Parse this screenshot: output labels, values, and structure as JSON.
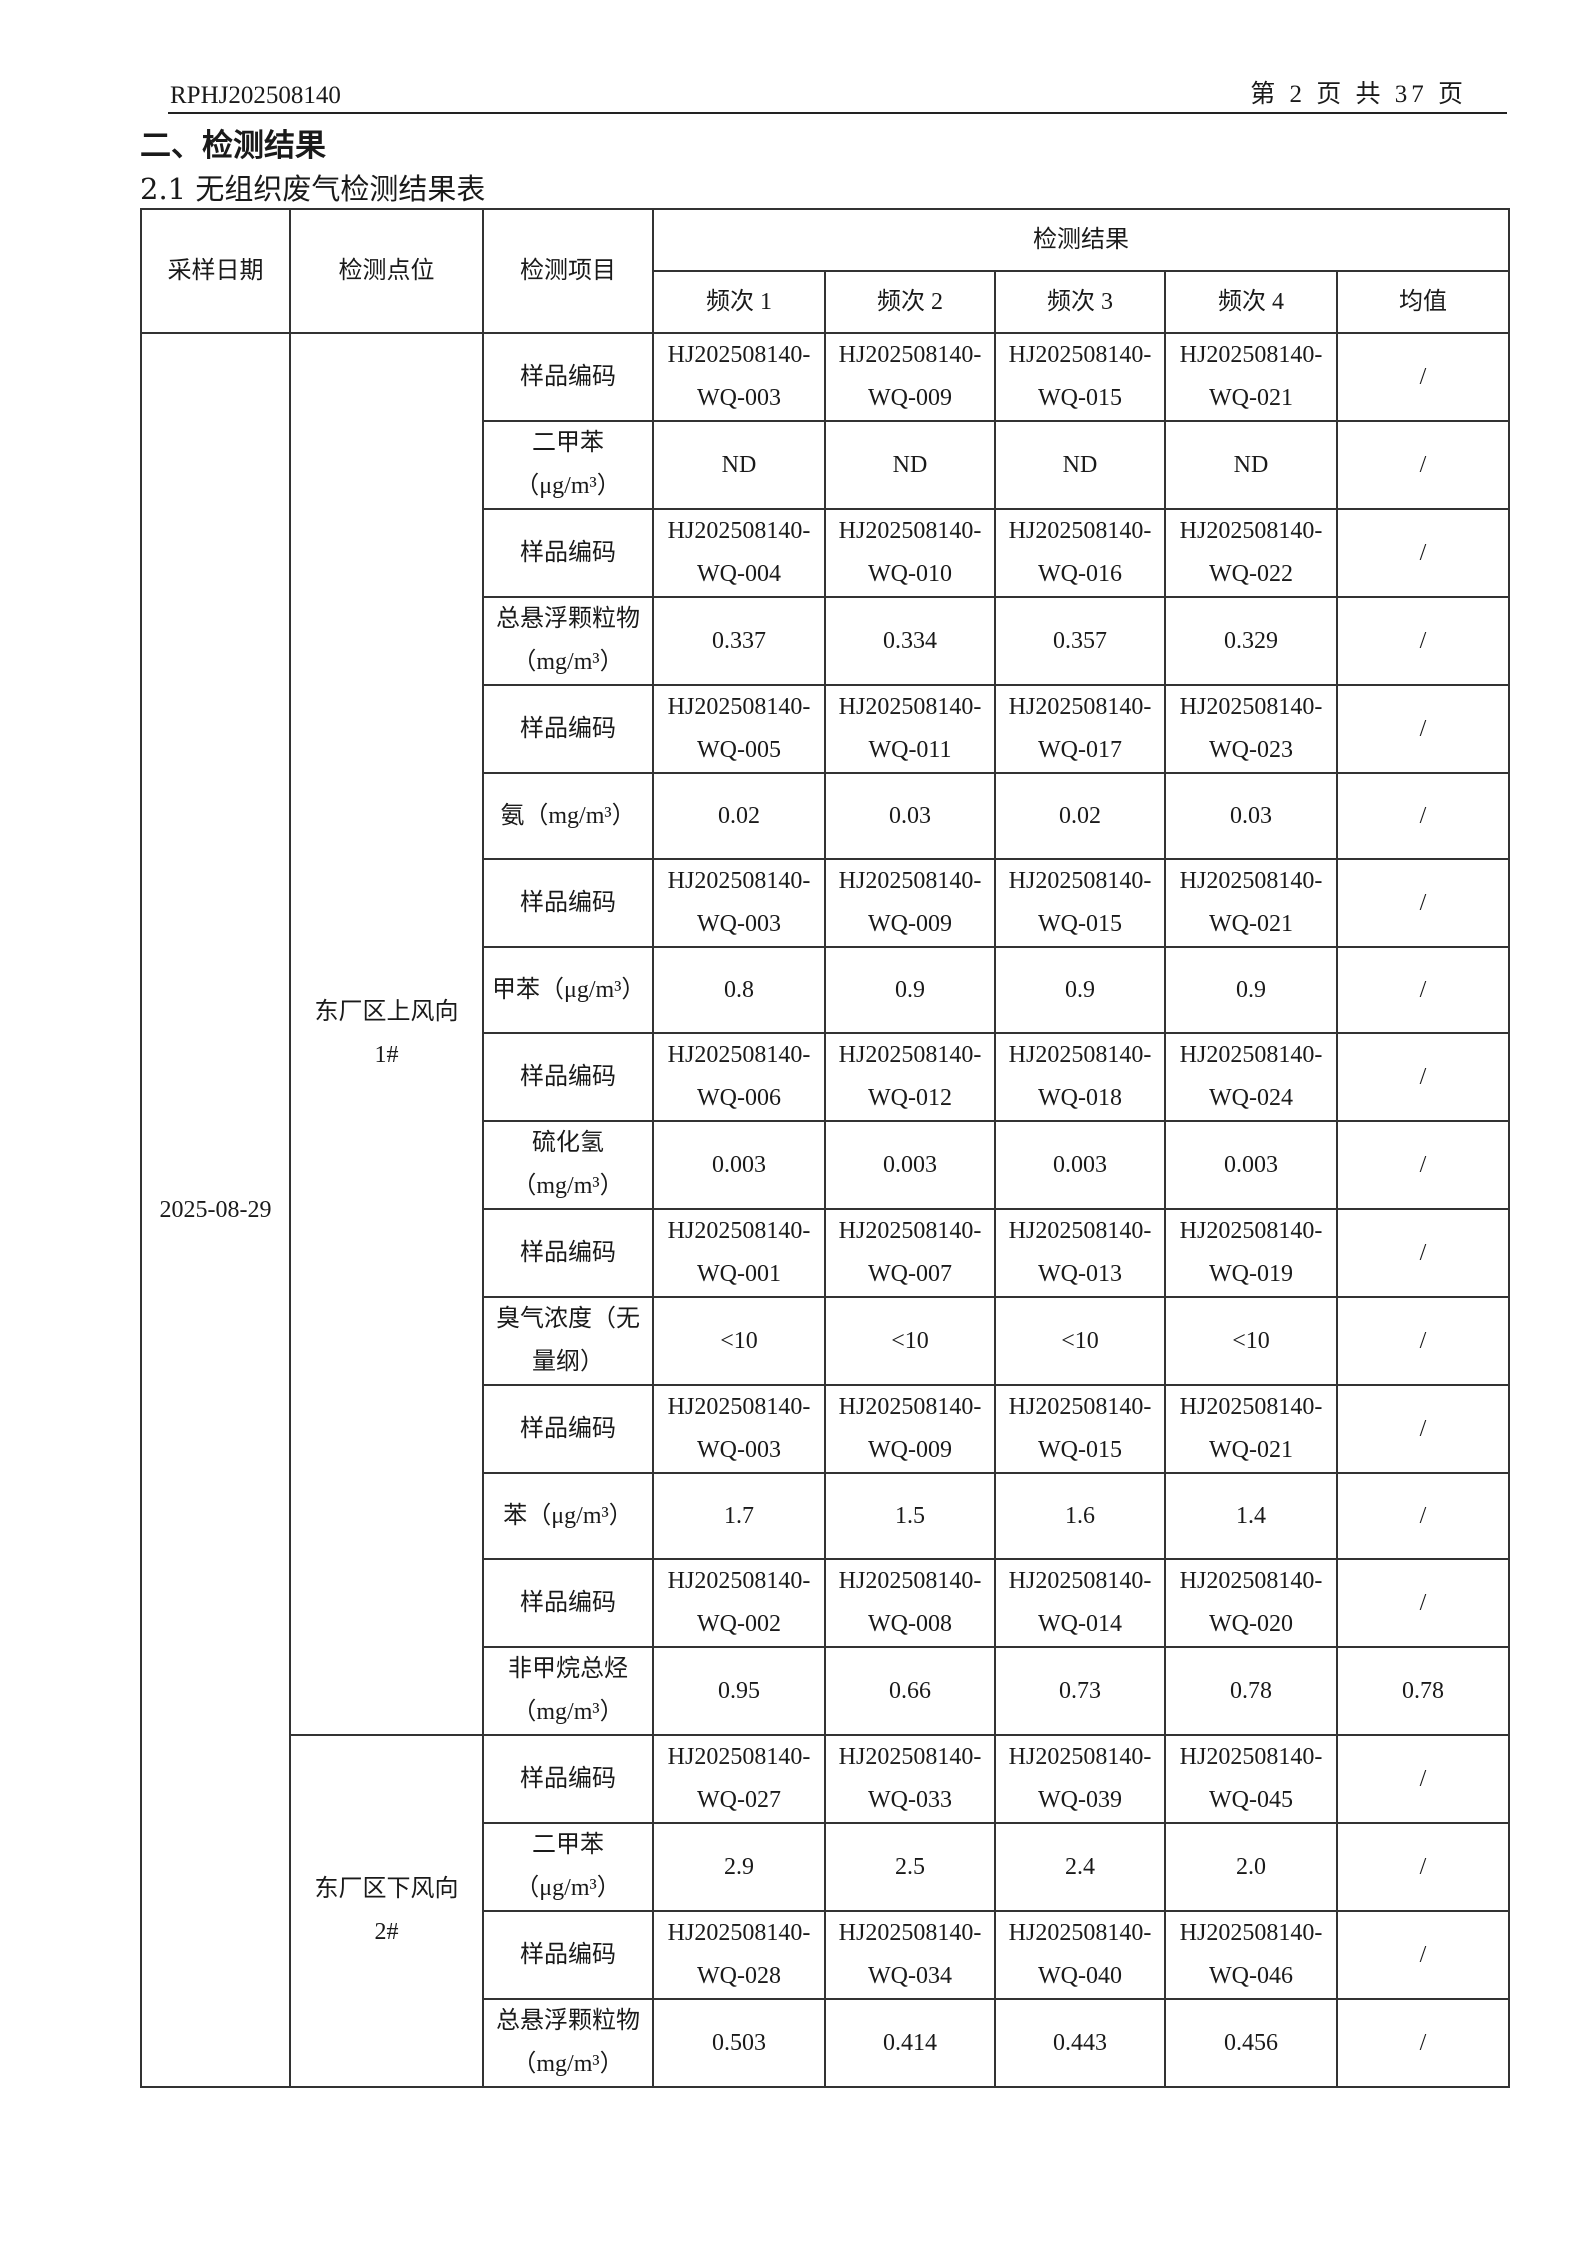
{
  "header": {
    "report_no": "RPHJ202508140",
    "page_info": "第 2 页 共 37 页"
  },
  "section_title": "二、检测结果",
  "subsection_title": "2.1 无组织废气检测结果表",
  "table": {
    "headers": {
      "date": "采样日期",
      "location": "检测点位",
      "item": "检测项目",
      "results": "检测结果",
      "freq": [
        "频次 1",
        "频次 2",
        "频次 3",
        "频次 4"
      ],
      "mean": "均值"
    },
    "sample_code_label": "样品编码",
    "date": "2025-08-29",
    "locations": [
      {
        "name": "东厂区上风向 1#",
        "items": [
          {
            "codes": [
              "HJ202508140-WQ-003",
              "HJ202508140-WQ-009",
              "HJ202508140-WQ-015",
              "HJ202508140-WQ-021"
            ],
            "code_mean": "/",
            "name": "二甲苯（μg/m³）",
            "values": [
              "ND",
              "ND",
              "ND",
              "ND"
            ],
            "mean": "/"
          },
          {
            "codes": [
              "HJ202508140-WQ-004",
              "HJ202508140-WQ-010",
              "HJ202508140-WQ-016",
              "HJ202508140-WQ-022"
            ],
            "code_mean": "/",
            "name": "总悬浮颗粒物（mg/m³）",
            "values": [
              "0.337",
              "0.334",
              "0.357",
              "0.329"
            ],
            "mean": "/"
          },
          {
            "codes": [
              "HJ202508140-WQ-005",
              "HJ202508140-WQ-011",
              "HJ202508140-WQ-017",
              "HJ202508140-WQ-023"
            ],
            "code_mean": "/",
            "name": "氨（mg/m³）",
            "values": [
              "0.02",
              "0.03",
              "0.02",
              "0.03"
            ],
            "mean": "/"
          },
          {
            "codes": [
              "HJ202508140-WQ-003",
              "HJ202508140-WQ-009",
              "HJ202508140-WQ-015",
              "HJ202508140-WQ-021"
            ],
            "code_mean": "/",
            "name": "甲苯（μg/m³）",
            "values": [
              "0.8",
              "0.9",
              "0.9",
              "0.9"
            ],
            "mean": "/"
          },
          {
            "codes": [
              "HJ202508140-WQ-006",
              "HJ202508140-WQ-012",
              "HJ202508140-WQ-018",
              "HJ202508140-WQ-024"
            ],
            "code_mean": "/",
            "name": "硫化氢（mg/m³）",
            "values": [
              "0.003",
              "0.003",
              "0.003",
              "0.003"
            ],
            "mean": "/"
          },
          {
            "codes": [
              "HJ202508140-WQ-001",
              "HJ202508140-WQ-007",
              "HJ202508140-WQ-013",
              "HJ202508140-WQ-019"
            ],
            "code_mean": "/",
            "name": "臭气浓度（无量纲）",
            "values": [
              "<10",
              "<10",
              "<10",
              "<10"
            ],
            "mean": "/"
          },
          {
            "codes": [
              "HJ202508140-WQ-003",
              "HJ202508140-WQ-009",
              "HJ202508140-WQ-015",
              "HJ202508140-WQ-021"
            ],
            "code_mean": "/",
            "name": "苯（μg/m³）",
            "values": [
              "1.7",
              "1.5",
              "1.6",
              "1.4"
            ],
            "mean": "/"
          },
          {
            "codes": [
              "HJ202508140-WQ-002",
              "HJ202508140-WQ-008",
              "HJ202508140-WQ-014",
              "HJ202508140-WQ-020"
            ],
            "code_mean": "/",
            "name": "非甲烷总烃（mg/m³）",
            "values": [
              "0.95",
              "0.66",
              "0.73",
              "0.78"
            ],
            "mean": "0.78"
          }
        ]
      },
      {
        "name": "东厂区下风向 2#",
        "items": [
          {
            "codes": [
              "HJ202508140-WQ-027",
              "HJ202508140-WQ-033",
              "HJ202508140-WQ-039",
              "HJ202508140-WQ-045"
            ],
            "code_mean": "/",
            "name": "二甲苯（μg/m³）",
            "values": [
              "2.9",
              "2.5",
              "2.4",
              "2.0"
            ],
            "mean": "/"
          },
          {
            "codes": [
              "HJ202508140-WQ-028",
              "HJ202508140-WQ-034",
              "HJ202508140-WQ-040",
              "HJ202508140-WQ-046"
            ],
            "code_mean": "/",
            "name": "总悬浮颗粒物（mg/m³）",
            "values": [
              "0.503",
              "0.414",
              "0.443",
              "0.456"
            ],
            "mean": "/"
          }
        ]
      }
    ]
  }
}
